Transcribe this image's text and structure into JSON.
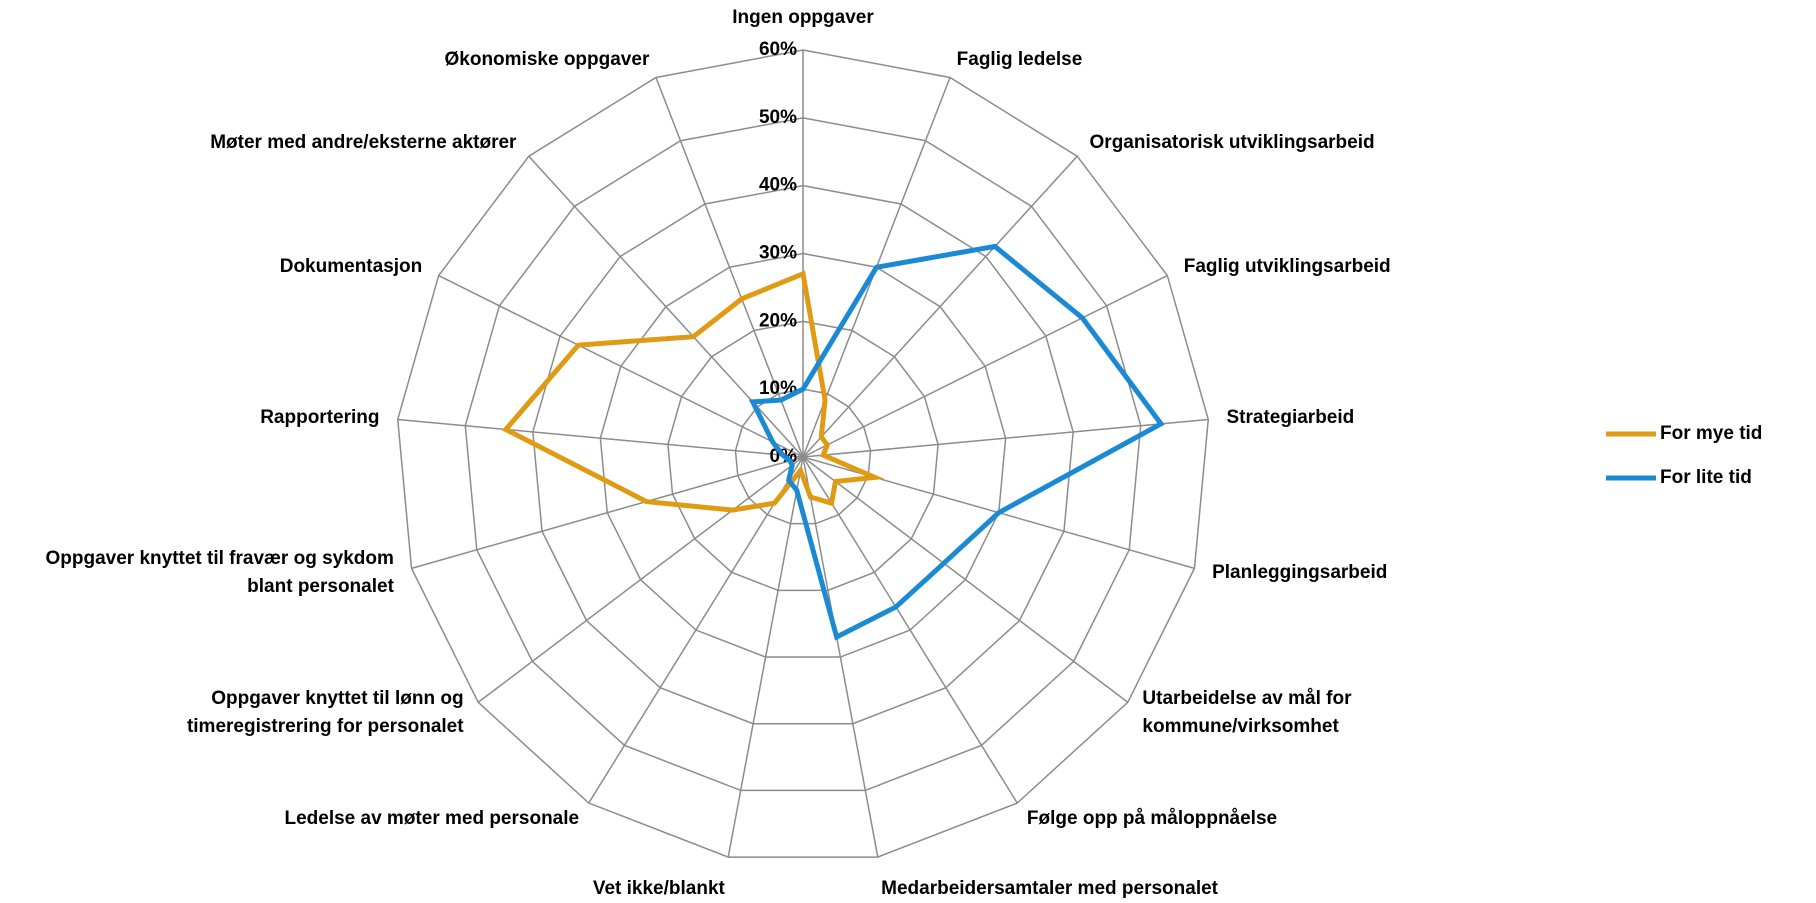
{
  "chart_data": {
    "type": "radar",
    "categories": [
      "Ingen oppgaver",
      "Faglig ledelse",
      "Organisatorisk utviklingsarbeid",
      "Faglig utviklingsarbeid",
      "Strategiarbeid",
      "Planleggingsarbeid",
      "Utarbeidelse av mål for\nkommune/virksomhet",
      "Følge opp på måloppnåelse",
      "Medarbeidersamtaler med personalet",
      "Vet ikke/blankt",
      "Ledelse av møter med personale",
      "Oppgaver knyttet til lønn og\ntimeregistrering for personalet",
      "Oppgaver knyttet til fravær og sykdom\nblant personalet",
      "Rapportering",
      "Dokumentasjon",
      "Møter med andre/eksterne aktører",
      "Økonomiske oppgaver"
    ],
    "series": [
      {
        "name": "For mye tid",
        "color": "#e09b14",
        "values": [
          27,
          9,
          4,
          4,
          3,
          11,
          6,
          8,
          6,
          2,
          8,
          13,
          24,
          44,
          37,
          24,
          25
        ]
      },
      {
        "name": "For lite tid",
        "color": "#1a8ad4",
        "values": [
          10,
          30,
          42,
          46,
          53,
          30,
          26,
          26,
          27,
          5,
          4,
          2,
          2,
          3,
          5,
          11,
          9
        ]
      }
    ],
    "ylim": [
      0,
      60
    ],
    "yticks": [
      {
        "value": 0,
        "label": "0%"
      },
      {
        "value": 10,
        "label": "10%"
      },
      {
        "value": 20,
        "label": "20%"
      },
      {
        "value": 30,
        "label": "30%"
      },
      {
        "value": 40,
        "label": "40%"
      },
      {
        "value": 50,
        "label": "50%"
      },
      {
        "value": 60,
        "label": "60%"
      }
    ],
    "grid": true,
    "legend": "right"
  }
}
